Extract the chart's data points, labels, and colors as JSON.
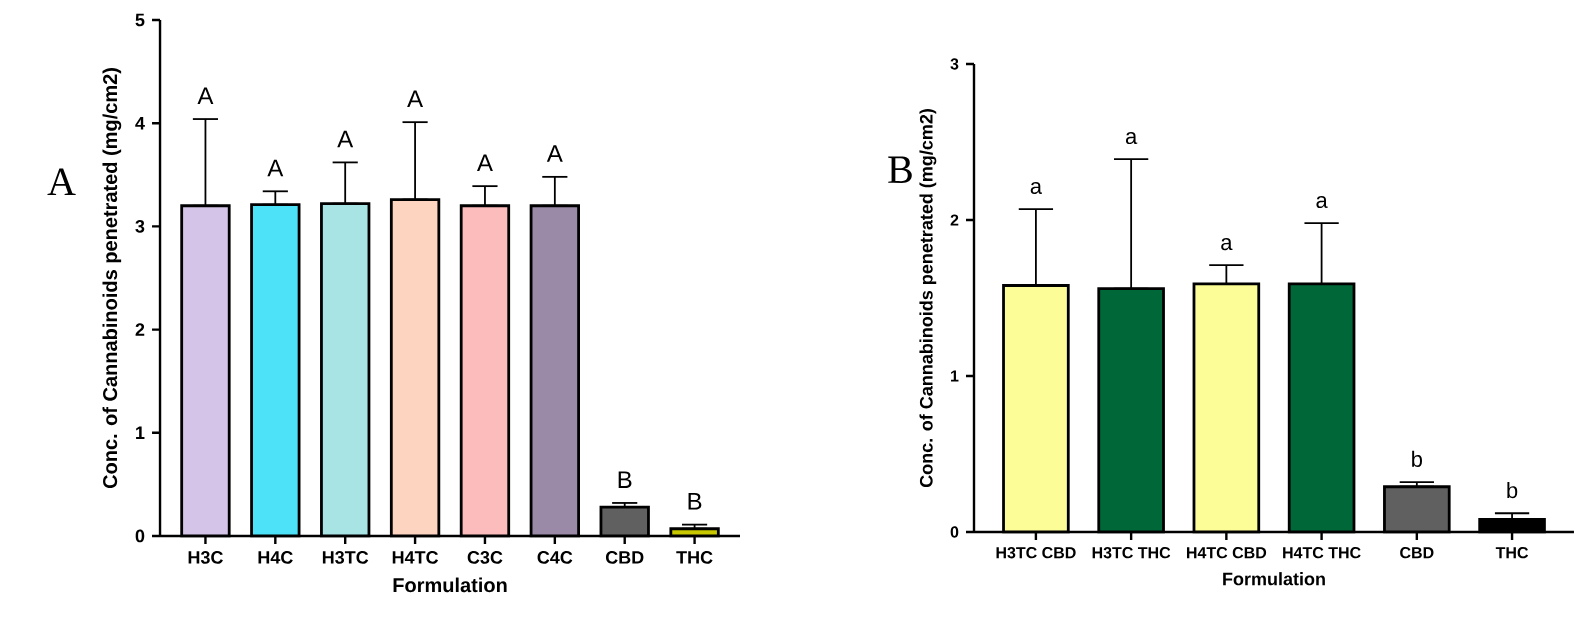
{
  "chart_data": [
    {
      "type": "bar",
      "title": "A",
      "xlabel": "Formulation",
      "ylabel": "Conc. of Cannabinoids penetrated (mg/cm2)",
      "categories": [
        "H3C",
        "H4C",
        "H3TC",
        "H4TC",
        "C3C",
        "C4C",
        "CBD",
        "THC"
      ],
      "values": [
        3.2,
        3.21,
        3.22,
        3.26,
        3.2,
        3.2,
        0.28,
        0.07
      ],
      "colors": [
        "#d4c4e8",
        "#4ee2f8",
        "#a8e4e4",
        "#fdd4c0",
        "#fdbcbc",
        "#9a8aa8",
        "#606060",
        "#c8c800"
      ],
      "errors": [
        [
          3.2,
          4.04
        ],
        [
          3.21,
          3.34
        ],
        [
          3.22,
          3.62
        ],
        [
          3.26,
          4.01
        ],
        [
          3.2,
          3.39
        ],
        [
          3.2,
          3.48
        ],
        [
          0.28,
          0.32
        ],
        [
          0.07,
          0.11
        ]
      ],
      "ylim": [
        0,
        5
      ],
      "yticks": [
        0,
        1,
        2,
        3,
        4,
        5
      ],
      "annotations": [
        "A",
        "A",
        "A",
        "A",
        "A",
        "A",
        "B",
        "B"
      ]
    },
    {
      "type": "bar",
      "title": "B",
      "xlabel": "Formulation",
      "ylabel": "Conc. of Cannabinoids penetrated (mg/cm2)",
      "categories": [
        "H3TC CBD",
        "H3TC THC",
        "H4TC CBD",
        "H4TC THC",
        "CBD",
        "THC"
      ],
      "values": [
        1.58,
        1.56,
        1.59,
        1.59,
        0.29,
        0.08
      ],
      "colors": [
        "#fdfd98",
        "#006838",
        "#fdfd98",
        "#006838",
        "#606060",
        "#000000"
      ],
      "errors": [
        [
          1.58,
          2.07
        ],
        [
          1.56,
          2.39
        ],
        [
          1.59,
          1.71
        ],
        [
          1.59,
          1.98
        ],
        [
          0.29,
          0.32
        ],
        [
          0.08,
          0.12
        ]
      ],
      "ylim": [
        0,
        3
      ],
      "yticks": [
        0,
        1,
        2,
        3
      ],
      "annotations": [
        "a",
        "a",
        "a",
        "a",
        "b",
        "b"
      ]
    }
  ]
}
